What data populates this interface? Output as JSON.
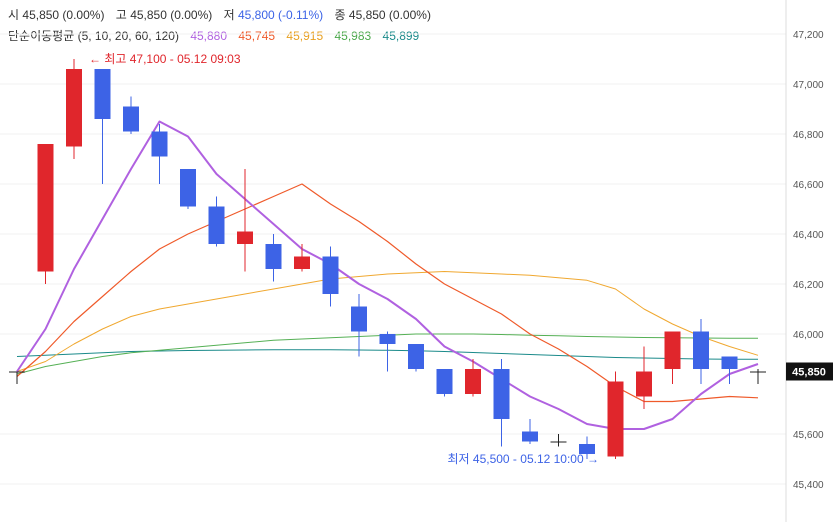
{
  "header": {
    "open_label": "시",
    "open_value": "45,850 (0.00%)",
    "high_label": "고",
    "high_value": "45,850 (0.00%)",
    "low_label": "저",
    "low_value": "45,800 (-0.11%)",
    "close_label": "종",
    "close_value": "45,850 (0.00%)",
    "ma_label": "단순이동평균 (5, 10, 20, 60, 120)",
    "ma_values": [
      {
        "value": "45,880",
        "color": "#b061e0"
      },
      {
        "value": "45,745",
        "color": "#ef5a2a"
      },
      {
        "value": "45,915",
        "color": "#f0a830"
      },
      {
        "value": "45,983",
        "color": "#55b055"
      },
      {
        "value": "45,899",
        "color": "#1a8a8a"
      }
    ]
  },
  "colors": {
    "up": "#e0262c",
    "down": "#3d63e6",
    "ma5": "#b061e0",
    "ma10": "#ef5a2a",
    "ma20": "#f0a830",
    "ma60": "#55b055",
    "ma120": "#1a8a8a"
  },
  "chart_data": {
    "type": "candlestick",
    "ylim": [
      45350,
      47250
    ],
    "y_ticks": [
      "47,200",
      "47,000",
      "46,800",
      "46,600",
      "46,400",
      "46,200",
      "46,000",
      "45,600",
      "45,400"
    ],
    "y_tick_values": [
      47200,
      47000,
      46800,
      46600,
      46400,
      46200,
      46000,
      45600,
      45400
    ],
    "current_price_label": "45,850",
    "current_price": 45850,
    "max_annotation": "← 최고 47,100 - 05.12 09:03",
    "min_annotation": "최저 45,500 - 05.12 10:00 →",
    "candles": [
      {
        "o": 45850,
        "h": 45850,
        "l": 45800,
        "c": 45850
      },
      {
        "o": 46250,
        "h": 46760,
        "l": 46200,
        "c": 46760
      },
      {
        "o": 46750,
        "h": 47100,
        "l": 46700,
        "c": 47060
      },
      {
        "o": 47060,
        "h": 47060,
        "l": 46600,
        "c": 46860
      },
      {
        "o": 46910,
        "h": 46950,
        "l": 46800,
        "c": 46810
      },
      {
        "o": 46810,
        "h": 46840,
        "l": 46600,
        "c": 46710
      },
      {
        "o": 46660,
        "h": 46660,
        "l": 46500,
        "c": 46510
      },
      {
        "o": 46510,
        "h": 46550,
        "l": 46350,
        "c": 46360
      },
      {
        "o": 46360,
        "h": 46660,
        "l": 46250,
        "c": 46410
      },
      {
        "o": 46360,
        "h": 46400,
        "l": 46210,
        "c": 46260
      },
      {
        "o": 46260,
        "h": 46360,
        "l": 46250,
        "c": 46310
      },
      {
        "o": 46310,
        "h": 46350,
        "l": 46110,
        "c": 46160
      },
      {
        "o": 46110,
        "h": 46160,
        "l": 45910,
        "c": 46010
      },
      {
        "o": 46000,
        "h": 46010,
        "l": 45850,
        "c": 45960
      },
      {
        "o": 45960,
        "h": 45960,
        "l": 45850,
        "c": 45860
      },
      {
        "o": 45860,
        "h": 45860,
        "l": 45750,
        "c": 45760
      },
      {
        "o": 45760,
        "h": 45900,
        "l": 45750,
        "c": 45860
      },
      {
        "o": 45860,
        "h": 45900,
        "l": 45550,
        "c": 45660
      },
      {
        "o": 45610,
        "h": 45660,
        "l": 45560,
        "c": 45570
      },
      {
        "o": 45570,
        "h": 45600,
        "l": 45550,
        "c": 45570
      },
      {
        "o": 45560,
        "h": 45590,
        "l": 45500,
        "c": 45520
      },
      {
        "o": 45510,
        "h": 45850,
        "l": 45500,
        "c": 45810
      },
      {
        "o": 45750,
        "h": 45950,
        "l": 45700,
        "c": 45850
      },
      {
        "o": 45860,
        "h": 46010,
        "l": 45800,
        "c": 46010
      },
      {
        "o": 46010,
        "h": 46060,
        "l": 45800,
        "c": 45860
      },
      {
        "o": 45910,
        "h": 45910,
        "l": 45800,
        "c": 45860
      },
      {
        "o": 45850,
        "h": 45860,
        "l": 45800,
        "c": 45850
      }
    ],
    "ma5": [
      45850,
      46020,
      46260,
      46460,
      46660,
      46850,
      46790,
      46640,
      46540,
      46440,
      46340,
      46280,
      46200,
      46140,
      46060,
      45950,
      45890,
      45820,
      45750,
      45700,
      45640,
      45620,
      45620,
      45660,
      45760,
      45840,
      45880
    ],
    "ma10": [
      45830,
      45930,
      46050,
      46150,
      46250,
      46340,
      46400,
      46450,
      46500,
      46550,
      46600,
      46520,
      46450,
      46370,
      46280,
      46200,
      46140,
      46080,
      46000,
      45940,
      45870,
      45790,
      45730,
      45730,
      45740,
      45750,
      45745
    ],
    "ma20": [
      45850,
      45890,
      45960,
      46020,
      46070,
      46100,
      46120,
      46140,
      46160,
      46180,
      46200,
      46220,
      46230,
      46240,
      46245,
      46250,
      46245,
      46240,
      46235,
      46225,
      46215,
      46180,
      46100,
      46040,
      45990,
      45950,
      45915
    ],
    "ma60": [
      45840,
      45870,
      45890,
      45910,
      45925,
      45935,
      45945,
      45955,
      45965,
      45975,
      45980,
      45985,
      45990,
      45995,
      46000,
      46000,
      46000,
      45998,
      45995,
      45993,
      45990,
      45988,
      45986,
      45985,
      45984,
      45983,
      45983
    ],
    "ma120": [
      45910,
      45915,
      45920,
      45925,
      45930,
      45932,
      45934,
      45935,
      45936,
      45937,
      45937,
      45937,
      45936,
      45935,
      45933,
      45930,
      45926,
      45922,
      45918,
      45914,
      45910,
      45906,
      45904,
      45902,
      45900,
      45899,
      45899
    ]
  }
}
